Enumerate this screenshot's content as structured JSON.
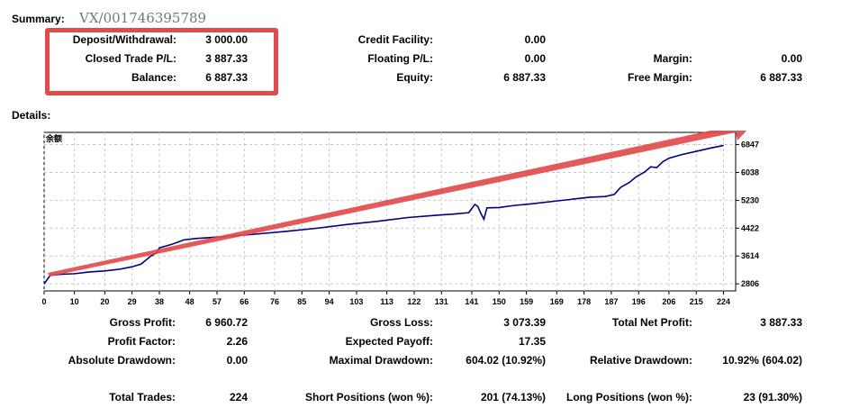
{
  "summary": {
    "title": "Summary:",
    "watermark": "VX/001746395789",
    "deposit_label": "Deposit/Withdrawal:",
    "deposit_value": "3 000.00",
    "closed_label": "Closed Trade P/L:",
    "closed_value": "3 887.33",
    "balance_label": "Balance:",
    "balance_value": "6 887.33",
    "credit_label": "Credit Facility:",
    "credit_value": "0.00",
    "floating_label": "Floating P/L:",
    "floating_value": "0.00",
    "equity_label": "Equity:",
    "equity_value": "6 887.33",
    "margin_label": "Margin:",
    "margin_value": "0.00",
    "free_margin_label": "Free Margin:",
    "free_margin_value": "6 887.33"
  },
  "details": {
    "title": "Details:"
  },
  "chart_data": {
    "type": "line",
    "series_label": "余额",
    "series": [
      {
        "name": "余额",
        "color": "#000080",
        "x": [
          0,
          2,
          5,
          10,
          15,
          20,
          25,
          29,
          32,
          35,
          37,
          38,
          40,
          42,
          44,
          46,
          50,
          60,
          70,
          80,
          90,
          100,
          110,
          120,
          130,
          135,
          140,
          142,
          143,
          144,
          145,
          146,
          150,
          155,
          160,
          170,
          180,
          185,
          188,
          190,
          193,
          195,
          196,
          198,
          200,
          202,
          204,
          206,
          210,
          215,
          220,
          224
        ],
        "y": [
          2806,
          3050,
          3080,
          3100,
          3150,
          3180,
          3230,
          3300,
          3380,
          3600,
          3700,
          3850,
          3900,
          3950,
          4010,
          4080,
          4120,
          4180,
          4250,
          4330,
          4420,
          4530,
          4620,
          4730,
          4800,
          4830,
          4870,
          5110,
          5050,
          4850,
          4680,
          5010,
          5020,
          5080,
          5120,
          5220,
          5320,
          5340,
          5400,
          5600,
          5750,
          5900,
          5950,
          6050,
          6200,
          6180,
          6350,
          6450,
          6550,
          6650,
          6750,
          6820
        ]
      }
    ],
    "x_ticks": [
      0,
      10,
      20,
      29,
      38,
      48,
      57,
      66,
      76,
      85,
      94,
      103,
      113,
      122,
      131,
      141,
      150,
      159,
      169,
      178,
      187,
      196,
      206,
      215,
      224
    ],
    "y_ticks": [
      2806,
      3614,
      4422,
      5230,
      6038,
      6847
    ],
    "xlim": [
      0,
      228
    ],
    "ylim": [
      2600,
      7200
    ],
    "grid": true
  },
  "stats": {
    "gross_profit_label": "Gross Profit:",
    "gross_profit_value": "6 960.72",
    "gross_loss_label": "Gross Loss:",
    "gross_loss_value": "3 073.39",
    "total_net_label": "Total Net Profit:",
    "total_net_value": "3 887.33",
    "profit_factor_label": "Profit Factor:",
    "profit_factor_value": "2.26",
    "expected_payoff_label": "Expected Payoff:",
    "expected_payoff_value": "17.35",
    "abs_dd_label": "Absolute Drawdown:",
    "abs_dd_value": "0.00",
    "max_dd_label": "Maximal Drawdown:",
    "max_dd_value": "604.02 (10.92%)",
    "rel_dd_label": "Relative Drawdown:",
    "rel_dd_value": "10.92% (604.02)",
    "total_trades_label": "Total Trades:",
    "total_trades_value": "224",
    "short_label": "Short Positions (won %):",
    "short_value": "201 (74.13%)",
    "long_label": "Long Positions (won %):",
    "long_value": "23 (91.30%)"
  },
  "colors": {
    "annotation": "#e24b4b",
    "line": "#000080",
    "grid": "#c8c8c8"
  }
}
